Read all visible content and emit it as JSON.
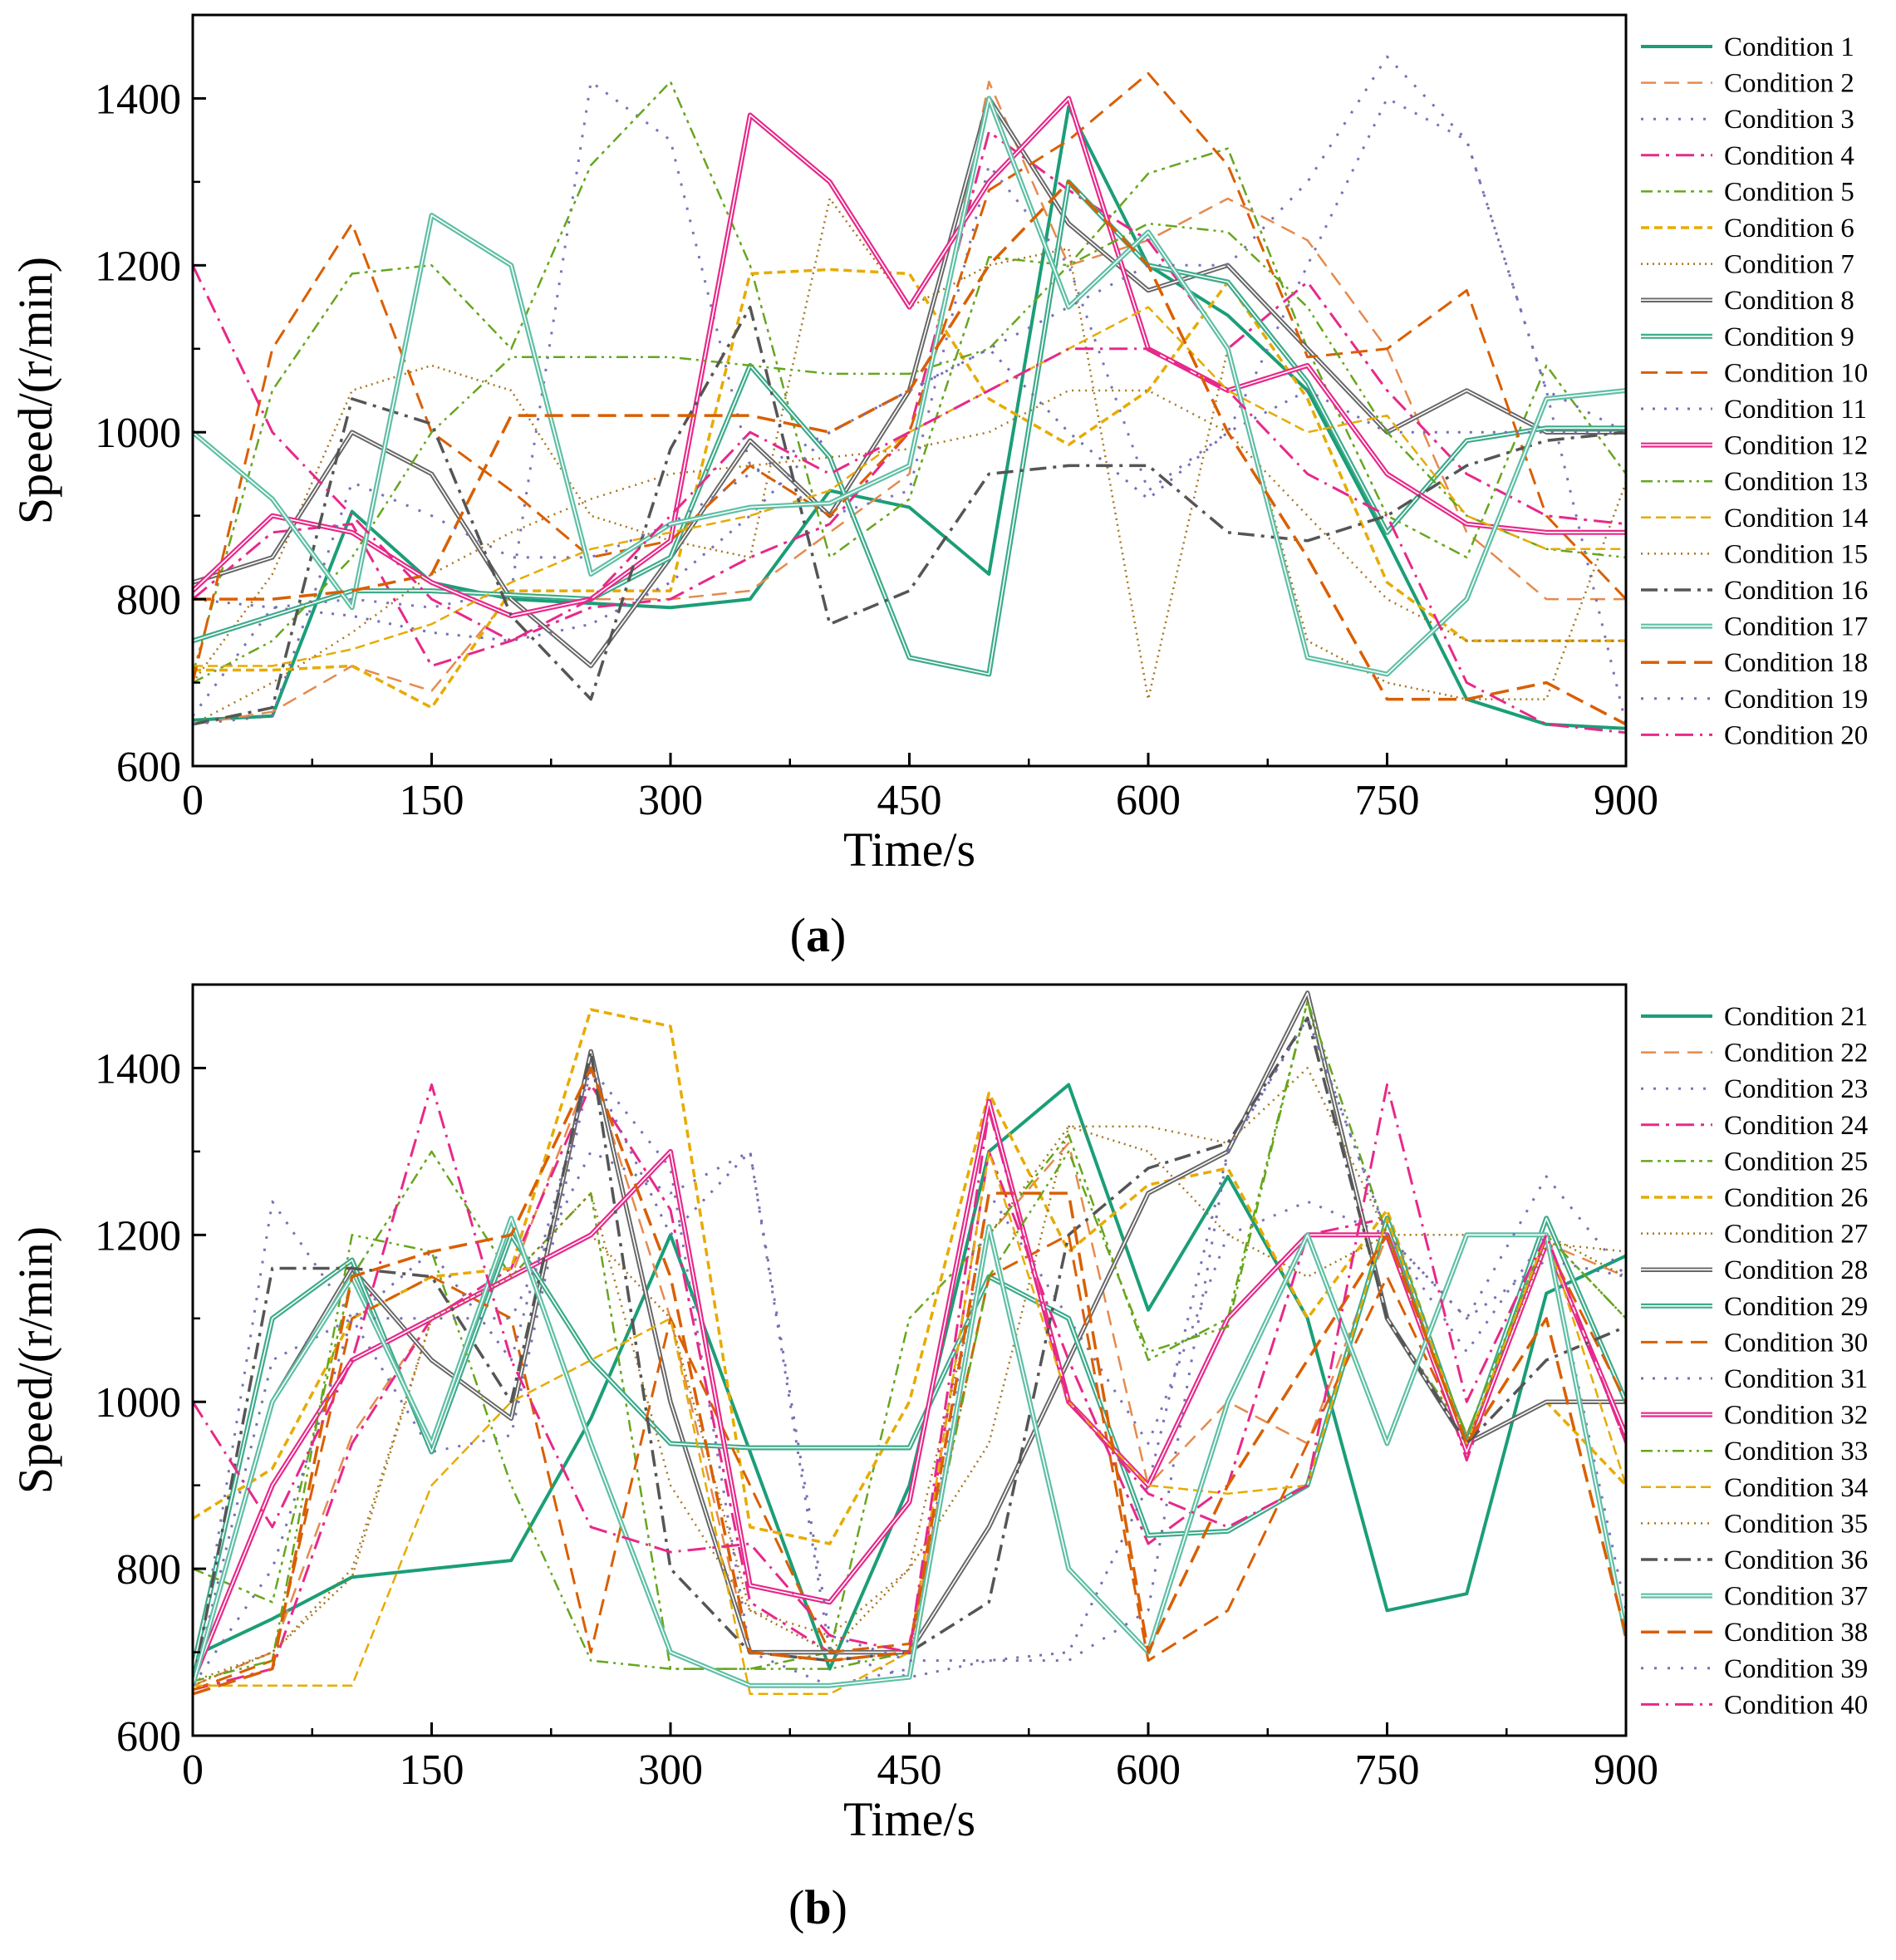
{
  "figure": {
    "palette": [
      "#1b9e77",
      "#e58a4e",
      "#7b73b8",
      "#e7298a",
      "#66a61e",
      "#e6ab02",
      "#a6761d",
      "#666666",
      "#3dab8b",
      "#d95f02",
      "#7570b3",
      "#e7298a",
      "#66a61e",
      "#e6ab02",
      "#a6761d",
      "#555555",
      "#5fbfa5",
      "#d95f02",
      "#7570b3",
      "#e7298a"
    ]
  },
  "chart_data": [
    {
      "type": "line",
      "panel_label": "(a)",
      "panel_letter": "a",
      "xlabel": "Time/s",
      "ylabel": "Speed/(r/min)",
      "xlim": [
        0,
        900
      ],
      "ylim": [
        600,
        1500
      ],
      "xticks": [
        0,
        150,
        300,
        450,
        600,
        750,
        900
      ],
      "yticks": [
        600,
        800,
        1000,
        1200,
        1400
      ],
      "x": [
        0,
        50,
        100,
        150,
        200,
        250,
        300,
        350,
        400,
        450,
        500,
        550,
        600,
        650,
        700,
        750,
        800,
        850,
        900
      ],
      "series": [
        {
          "name": "Condition 1",
          "values": [
            655,
            660,
            905,
            820,
            800,
            795,
            790,
            800,
            930,
            910,
            830,
            1390,
            1200,
            1140,
            1050,
            870,
            680,
            650,
            645
          ]
        },
        {
          "name": "Condition 2",
          "values": [
            650,
            665,
            720,
            690,
            805,
            800,
            800,
            810,
            880,
            950,
            1420,
            1200,
            1230,
            1280,
            1230,
            1100,
            880,
            800,
            800
          ]
        },
        {
          "name": "Condition 3",
          "values": [
            660,
            790,
            800,
            790,
            810,
            1420,
            1350,
            960,
            900,
            930,
            1320,
            1200,
            930,
            1000,
            1200,
            1400,
            1350,
            1050,
            650
          ]
        },
        {
          "name": "Condition 4",
          "values": [
            800,
            880,
            890,
            720,
            750,
            790,
            800,
            850,
            890,
            1000,
            1360,
            1290,
            1230,
            1100,
            1180,
            1050,
            950,
            900,
            890
          ]
        },
        {
          "name": "Condition 5",
          "values": [
            710,
            1050,
            1190,
            1200,
            1100,
            1320,
            1420,
            1200,
            850,
            920,
            1210,
            1200,
            1310,
            1340,
            1100,
            900,
            850,
            1080,
            950
          ]
        },
        {
          "name": "Condition 6",
          "values": [
            715,
            715,
            720,
            670,
            810,
            810,
            810,
            1190,
            1195,
            1190,
            1040,
            985,
            1050,
            1180,
            1040,
            820,
            750,
            750,
            750
          ]
        },
        {
          "name": "Condition 7",
          "values": [
            700,
            830,
            1050,
            1080,
            1050,
            900,
            870,
            850,
            1280,
            1150,
            1200,
            1220,
            680,
            1100,
            750,
            700,
            680,
            680,
            940
          ]
        },
        {
          "name": "Condition 8",
          "values": [
            820,
            850,
            1000,
            950,
            800,
            720,
            850,
            990,
            900,
            1050,
            1400,
            1250,
            1170,
            1200,
            1100,
            1000,
            1050,
            1000,
            1000
          ]
        },
        {
          "name": "Condition 9",
          "values": [
            750,
            780,
            810,
            810,
            805,
            800,
            850,
            1080,
            970,
            730,
            710,
            1300,
            1200,
            1180,
            1060,
            880,
            990,
            1005,
            1005
          ]
        },
        {
          "name": "Condition 10",
          "values": [
            700,
            1100,
            1250,
            1000,
            930,
            850,
            870,
            960,
            900,
            1000,
            1290,
            1350,
            1430,
            1320,
            1090,
            1100,
            1170,
            900,
            800
          ]
        },
        {
          "name": "Condition 11",
          "values": [
            800,
            790,
            780,
            760,
            750,
            770,
            820,
            900,
            1000,
            1050,
            1100,
            1000,
            920,
            1000,
            1050,
            1000,
            1000,
            1000,
            1000
          ]
        },
        {
          "name": "Condition 12",
          "values": [
            810,
            900,
            880,
            820,
            780,
            800,
            870,
            1380,
            1300,
            1150,
            1300,
            1400,
            1100,
            1050,
            1080,
            950,
            890,
            880,
            880
          ]
        },
        {
          "name": "Condition 13",
          "values": [
            700,
            750,
            850,
            1000,
            1090,
            1090,
            1090,
            1080,
            1070,
            1070,
            1100,
            1200,
            1250,
            1240,
            1150,
            1000,
            900,
            860,
            850
          ]
        },
        {
          "name": "Condition 14",
          "values": [
            720,
            720,
            740,
            770,
            820,
            860,
            880,
            900,
            930,
            1000,
            1050,
            1100,
            1150,
            1050,
            1000,
            1020,
            900,
            860,
            860
          ]
        },
        {
          "name": "Condition 15",
          "values": [
            650,
            700,
            760,
            830,
            880,
            920,
            950,
            960,
            970,
            980,
            1000,
            1050,
            1050,
            1000,
            900,
            800,
            750,
            750,
            750
          ]
        },
        {
          "name": "Condition 16",
          "values": [
            650,
            670,
            1040,
            1010,
            780,
            680,
            980,
            1150,
            770,
            810,
            950,
            960,
            960,
            880,
            870,
            900,
            960,
            990,
            1000
          ]
        },
        {
          "name": "Condition 17",
          "values": [
            1000,
            920,
            790,
            1260,
            1200,
            830,
            890,
            910,
            915,
            960,
            1400,
            1150,
            1240,
            1100,
            730,
            710,
            800,
            1040,
            1050
          ]
        },
        {
          "name": "Condition 18",
          "values": [
            800,
            800,
            810,
            830,
            1020,
            1020,
            1020,
            1020,
            1000,
            1050,
            1200,
            1300,
            1200,
            1000,
            850,
            680,
            680,
            700,
            650
          ]
        },
        {
          "name": "Condition 19",
          "values": [
            650,
            660,
            940,
            900,
            850,
            850,
            890,
            950,
            1000,
            1050,
            1100,
            1150,
            1200,
            1200,
            1300,
            1450,
            1350,
            1050,
            1000
          ]
        },
        {
          "name": "Condition 20",
          "values": [
            1200,
            1000,
            900,
            800,
            750,
            800,
            900,
            1000,
            950,
            1000,
            1050,
            1100,
            1100,
            1050,
            950,
            900,
            700,
            650,
            640
          ]
        }
      ]
    },
    {
      "type": "line",
      "panel_label": "(b)",
      "panel_letter": "b",
      "xlabel": "Time/s",
      "ylabel": "Speed/(r/min)",
      "xlim": [
        0,
        900
      ],
      "ylim": [
        600,
        1500
      ],
      "xticks": [
        0,
        150,
        300,
        450,
        600,
        750,
        900
      ],
      "yticks": [
        600,
        800,
        1000,
        1200,
        1400
      ],
      "x": [
        0,
        50,
        100,
        150,
        200,
        250,
        300,
        350,
        400,
        450,
        500,
        550,
        600,
        650,
        700,
        750,
        800,
        850,
        900
      ],
      "series": [
        {
          "name": "Condition 21",
          "values": [
            695,
            740,
            790,
            800,
            810,
            980,
            1200,
            940,
            680,
            900,
            1300,
            1380,
            1110,
            1270,
            1100,
            750,
            770,
            1130,
            1175
          ]
        },
        {
          "name": "Condition 22",
          "values": [
            660,
            700,
            960,
            1100,
            1150,
            1400,
            1100,
            700,
            690,
            700,
            1200,
            1310,
            900,
            1000,
            950,
            1200,
            960,
            1190,
            1150
          ]
        },
        {
          "name": "Condition 23",
          "values": [
            650,
            1240,
            1100,
            940,
            960,
            1400,
            1280,
            700,
            660,
            680,
            1250,
            1100,
            950,
            1200,
            1240,
            1200,
            1060,
            1200,
            750
          ]
        },
        {
          "name": "Condition 24",
          "values": [
            655,
            680,
            950,
            1100,
            1160,
            1380,
            1230,
            760,
            700,
            700,
            1300,
            1050,
            830,
            900,
            1200,
            1220,
            930,
            1200,
            950
          ]
        },
        {
          "name": "Condition 25",
          "values": [
            800,
            760,
            1150,
            1300,
            1150,
            1250,
            680,
            680,
            700,
            1100,
            1200,
            1320,
            1050,
            1100,
            1480,
            1100,
            960,
            1200,
            1100
          ]
        },
        {
          "name": "Condition 26",
          "values": [
            860,
            920,
            1100,
            1150,
            1160,
            1470,
            1450,
            850,
            830,
            1000,
            1370,
            1180,
            1260,
            1280,
            1100,
            1230,
            950,
            1000,
            900
          ]
        },
        {
          "name": "Condition 27",
          "values": [
            660,
            700,
            790,
            1100,
            1150,
            1200,
            1100,
            750,
            700,
            800,
            950,
            1330,
            1300,
            1200,
            1150,
            1200,
            1200,
            1200,
            1150
          ]
        },
        {
          "name": "Condition 28",
          "values": [
            660,
            1000,
            1160,
            1050,
            980,
            1420,
            1000,
            700,
            700,
            700,
            850,
            1050,
            1250,
            1300,
            1490,
            1100,
            950,
            1000,
            1000
          ]
        },
        {
          "name": "Condition 29",
          "values": [
            680,
            1100,
            1170,
            940,
            1200,
            1050,
            950,
            945,
            945,
            945,
            1150,
            1100,
            840,
            845,
            900,
            1220,
            950,
            1220,
            1000
          ]
        },
        {
          "name": "Condition 30",
          "values": [
            655,
            690,
            1100,
            1150,
            1100,
            700,
            1100,
            900,
            700,
            710,
            1150,
            1200,
            690,
            750,
            950,
            1150,
            950,
            1190,
            1000
          ]
        },
        {
          "name": "Condition 31",
          "values": [
            660,
            1050,
            1100,
            1180,
            1050,
            1400,
            1200,
            1300,
            700,
            670,
            690,
            700,
            900,
            1300,
            1460,
            1200,
            1100,
            1170,
            1150
          ]
        },
        {
          "name": "Condition 32",
          "values": [
            665,
            900,
            1050,
            1100,
            1150,
            1200,
            1300,
            780,
            760,
            880,
            1360,
            1000,
            900,
            1100,
            1200,
            1200,
            940,
            1190,
            960
          ]
        },
        {
          "name": "Condition 33",
          "values": [
            665,
            690,
            1200,
            1180,
            900,
            690,
            680,
            680,
            680,
            700,
            1150,
            1300,
            1060,
            1090,
            1480,
            1200,
            960,
            1200,
            1100
          ]
        },
        {
          "name": "Condition 34",
          "values": [
            660,
            660,
            660,
            900,
            1000,
            1050,
            1100,
            650,
            650,
            700,
            1300,
            1000,
            900,
            890,
            900,
            1220,
            950,
            1200,
            900
          ]
        },
        {
          "name": "Condition 35",
          "values": [
            665,
            700,
            800,
            1100,
            1150,
            1250,
            900,
            750,
            720,
            800,
            1200,
            1330,
            1330,
            1310,
            1400,
            1200,
            950,
            1190,
            1180
          ]
        },
        {
          "name": "Condition 36",
          "values": [
            660,
            1160,
            1160,
            1150,
            1000,
            1420,
            800,
            700,
            690,
            700,
            760,
            1200,
            1280,
            1310,
            1460,
            1100,
            950,
            1050,
            1090
          ]
        },
        {
          "name": "Condition 37",
          "values": [
            660,
            1000,
            1150,
            950,
            1220,
            950,
            700,
            660,
            660,
            670,
            1210,
            800,
            700,
            1000,
            1200,
            950,
            1200,
            1200,
            720
          ]
        },
        {
          "name": "Condition 38",
          "values": [
            650,
            680,
            1150,
            1180,
            1200,
            1400,
            1150,
            700,
            690,
            700,
            1250,
            1250,
            700,
            900,
            1050,
            1200,
            950,
            1100,
            720
          ]
        },
        {
          "name": "Condition 39",
          "values": [
            660,
            800,
            1100,
            1100,
            1100,
            1300,
            1250,
            1300,
            720,
            690,
            690,
            690,
            750,
            1300,
            1460,
            1200,
            1100,
            1270,
            1150
          ]
        },
        {
          "name": "Condition 40",
          "values": [
            1000,
            850,
            1050,
            1380,
            1050,
            850,
            820,
            830,
            720,
            700,
            1350,
            1000,
            890,
            850,
            900,
            1380,
            1000,
            1200,
            950
          ]
        }
      ]
    }
  ]
}
